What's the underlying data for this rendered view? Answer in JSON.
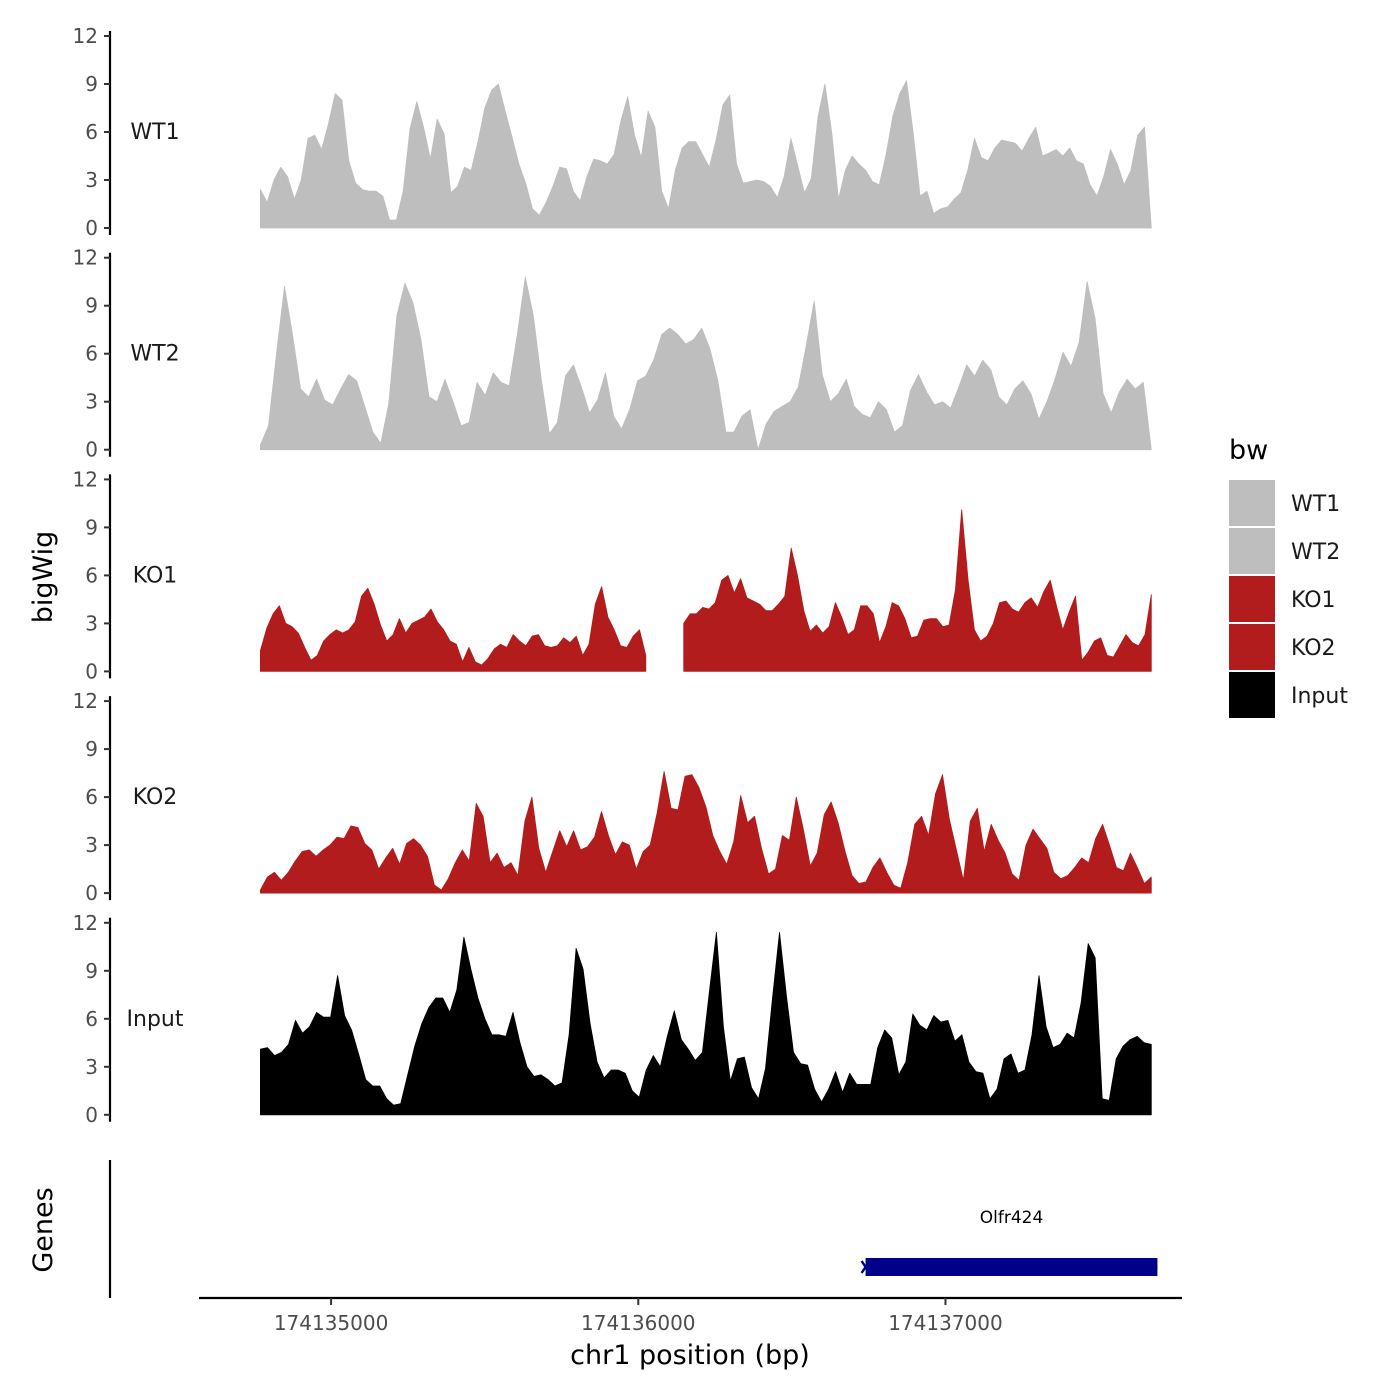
{
  "chart_data": {
    "type": "area",
    "title": "",
    "ylabel": "bigWig",
    "xlabel": "chr1 position (bp)",
    "gene_panel_label": "Genes",
    "xlim": [
      174134570,
      174137770
    ],
    "ylim": [
      0,
      12
    ],
    "y_ticks": [
      "0",
      "3",
      "6",
      "9",
      "12"
    ],
    "x_ticks": [
      {
        "value": 174135000,
        "label": "174135000"
      },
      {
        "value": 174136000,
        "label": "174136000"
      },
      {
        "value": 174137000,
        "label": "174137000"
      }
    ],
    "x_start": 174134770,
    "x_end": 174137670,
    "legend_title": "bw",
    "series": [
      {
        "name": "WT1",
        "color": "#bebebe",
        "values": [
          2.4,
          1.6,
          3.0,
          3.8,
          3.2,
          1.8,
          3.0,
          5.6,
          5.8,
          4.9,
          6.5,
          8.4,
          8.0,
          4.2,
          2.8,
          2.4,
          2.3,
          2.3,
          2.0,
          0.5,
          0.5,
          2.3,
          6.2,
          7.9,
          6.3,
          4.3,
          6.8,
          5.9,
          2.2,
          2.6,
          3.8,
          3.6,
          5.4,
          7.5,
          8.6,
          9.0,
          7.3,
          5.7,
          4.0,
          2.8,
          1.2,
          0.8,
          1.6,
          2.6,
          3.8,
          3.7,
          2.3,
          1.7,
          3.2,
          4.3,
          4.2,
          4.0,
          4.6,
          6.7,
          8.2,
          5.8,
          4.4,
          7.3,
          6.3,
          2.3,
          1.2,
          3.6,
          5.0,
          5.4,
          5.4,
          4.6,
          3.8,
          5.5,
          7.7,
          8.3,
          4.0,
          2.8,
          2.9,
          3.0,
          2.9,
          2.6,
          1.9,
          3.2,
          5.6,
          3.9,
          2.2,
          3.1,
          7.0,
          9.0,
          6.0,
          1.8,
          3.6,
          4.5,
          4.0,
          3.6,
          2.9,
          2.7,
          4.6,
          7.0,
          8.4,
          9.2,
          5.9,
          2.0,
          2.3,
          0.9,
          1.2,
          1.3,
          1.8,
          2.2,
          3.6,
          5.6,
          4.4,
          4.2,
          5.0,
          5.5,
          5.4,
          5.3,
          4.8,
          5.6,
          6.3,
          4.5,
          4.7,
          4.9,
          4.5,
          5.0,
          4.2,
          4.0,
          2.7,
          2.0,
          3.2,
          4.9,
          4.0,
          2.7,
          3.6,
          5.8,
          6.3,
          0.0
        ]
      },
      {
        "name": "WT2",
        "color": "#bebebe",
        "values": [
          0.3,
          1.5,
          6.0,
          10.2,
          7.2,
          3.8,
          3.3,
          4.4,
          3.1,
          2.8,
          3.8,
          4.7,
          4.3,
          2.7,
          1.1,
          0.4,
          2.9,
          8.4,
          10.4,
          9.2,
          6.9,
          3.3,
          3.0,
          4.4,
          3.0,
          1.5,
          1.7,
          4.2,
          3.4,
          4.8,
          4.2,
          4.0,
          7.2,
          10.8,
          8.4,
          4.4,
          1.0,
          1.7,
          4.6,
          5.3,
          3.9,
          2.3,
          3.1,
          4.8,
          2.1,
          1.3,
          2.5,
          4.3,
          4.6,
          5.6,
          7.2,
          7.6,
          7.2,
          6.6,
          6.9,
          7.6,
          6.3,
          4.3,
          1.1,
          1.1,
          2.1,
          2.5,
          0.0,
          1.6,
          2.4,
          2.7,
          3.0,
          3.9,
          6.5,
          9.3,
          4.7,
          3.0,
          3.5,
          4.4,
          2.7,
          2.2,
          2.0,
          3.0,
          2.5,
          1.1,
          1.5,
          3.7,
          4.7,
          3.6,
          2.8,
          3.0,
          2.6,
          3.9,
          5.3,
          4.6,
          5.6,
          5.0,
          3.3,
          2.8,
          3.8,
          4.3,
          3.5,
          1.9,
          3.0,
          4.4,
          6.1,
          5.2,
          6.7,
          10.5,
          8.2,
          3.5,
          2.3,
          3.6,
          4.4,
          3.8,
          4.2,
          0.0
        ]
      },
      {
        "name": "KO1",
        "color": "#b21c1c",
        "values": [
          1.3,
          2.7,
          3.6,
          4.1,
          3.0,
          2.8,
          2.4,
          1.5,
          0.7,
          1.0,
          1.9,
          2.3,
          2.6,
          2.4,
          2.6,
          3.1,
          4.7,
          5.2,
          4.2,
          2.9,
          1.9,
          2.3,
          3.3,
          2.4,
          3.0,
          3.2,
          3.4,
          3.9,
          3.1,
          2.6,
          1.9,
          1.7,
          0.6,
          1.5,
          0.6,
          0.4,
          0.8,
          1.4,
          1.7,
          1.5,
          2.3,
          1.9,
          1.6,
          2.2,
          2.3,
          1.6,
          1.5,
          1.6,
          2.1,
          1.8,
          2.2,
          1.0,
          1.7,
          4.2,
          5.3,
          3.4,
          2.6,
          1.6,
          1.5,
          2.2,
          2.6,
          1.0,
          null,
          null,
          null,
          null,
          null,
          3.0,
          3.6,
          3.6,
          4.0,
          3.9,
          4.3,
          5.7,
          6.0,
          4.9,
          5.8,
          4.6,
          4.4,
          4.2,
          3.8,
          3.8,
          4.2,
          4.7,
          7.7,
          6.0,
          3.8,
          2.5,
          2.9,
          2.4,
          2.8,
          4.3,
          3.4,
          2.3,
          2.6,
          4.1,
          4.1,
          3.6,
          1.8,
          2.8,
          4.3,
          4.1,
          3.3,
          2.1,
          2.2,
          3.2,
          3.3,
          3.3,
          2.8,
          2.9,
          5.1,
          10.1,
          5.7,
          2.6,
          1.9,
          2.2,
          3.0,
          4.3,
          4.4,
          3.9,
          3.7,
          4.3,
          4.6,
          4.0,
          5.0,
          5.7,
          4.1,
          2.6,
          3.7,
          4.7,
          0.7,
          1.2,
          1.9,
          2.1,
          1.0,
          0.9,
          1.6,
          2.3,
          1.8,
          1.6,
          2.3,
          4.8
        ]
      },
      {
        "name": "KO2",
        "color": "#b21c1c",
        "values": [
          0.2,
          1.0,
          1.3,
          0.8,
          1.3,
          2.0,
          2.6,
          2.7,
          2.3,
          2.7,
          3.0,
          3.5,
          3.4,
          4.2,
          4.1,
          3.1,
          2.7,
          1.5,
          2.2,
          2.8,
          1.8,
          3.1,
          3.4,
          3.0,
          2.3,
          0.5,
          0.2,
          0.9,
          1.9,
          2.7,
          2.0,
          5.6,
          4.8,
          1.9,
          2.5,
          1.6,
          1.9,
          1.1,
          4.5,
          6.0,
          2.8,
          1.3,
          2.6,
          3.9,
          2.9,
          3.9,
          2.7,
          2.9,
          3.5,
          5.1,
          3.6,
          2.4,
          3.2,
          3.0,
          1.5,
          2.6,
          3.0,
          5.0,
          7.6,
          5.3,
          5.2,
          7.3,
          7.4,
          6.6,
          5.4,
          3.6,
          2.6,
          1.8,
          3.2,
          6.1,
          4.4,
          4.8,
          2.8,
          1.2,
          1.5,
          3.6,
          3.3,
          6.0,
          4.0,
          1.7,
          2.5,
          4.9,
          5.7,
          4.4,
          2.6,
          1.1,
          0.6,
          0.7,
          1.6,
          2.2,
          1.3,
          0.5,
          0.3,
          1.9,
          4.3,
          4.8,
          3.6,
          6.2,
          7.4,
          4.6,
          2.7,
          0.8,
          4.5,
          5.3,
          2.6,
          4.3,
          3.3,
          2.5,
          1.2,
          0.8,
          3.0,
          4.0,
          3.4,
          2.8,
          1.3,
          0.9,
          1.1,
          1.6,
          2.2,
          1.9,
          3.4,
          4.3,
          3.0,
          1.6,
          1.4,
          2.5,
          1.6,
          0.6,
          1.0
        ]
      },
      {
        "name": "Input",
        "color": "#000000",
        "values": [
          4.1,
          4.2,
          3.7,
          3.9,
          4.4,
          5.9,
          5.1,
          5.5,
          6.4,
          6.1,
          6.1,
          8.7,
          6.2,
          5.3,
          3.8,
          2.2,
          1.8,
          1.8,
          1.0,
          0.6,
          0.7,
          2.5,
          4.3,
          5.7,
          6.7,
          7.3,
          7.3,
          6.4,
          7.8,
          11.1,
          9.1,
          7.3,
          6.0,
          5.0,
          5.0,
          4.9,
          6.4,
          4.5,
          3.0,
          2.4,
          2.5,
          2.2,
          1.8,
          2.0,
          5.0,
          10.4,
          9.1,
          5.7,
          3.3,
          2.3,
          2.8,
          2.8,
          2.6,
          1.5,
          1.1,
          2.8,
          3.7,
          3.0,
          4.9,
          6.5,
          4.7,
          4.1,
          3.4,
          3.9,
          7.7,
          11.4,
          5.5,
          2.1,
          3.5,
          3.6,
          1.7,
          1.0,
          2.9,
          7.3,
          11.4,
          7.4,
          3.9,
          3.2,
          3.1,
          1.6,
          0.8,
          1.6,
          2.7,
          1.4,
          2.6,
          1.9,
          1.9,
          1.9,
          4.2,
          5.3,
          4.8,
          2.5,
          3.3,
          6.3,
          5.6,
          5.3,
          6.2,
          5.8,
          5.9,
          4.6,
          5.0,
          3.3,
          2.7,
          2.6,
          1.0,
          1.6,
          3.5,
          3.8,
          2.6,
          2.8,
          5.0,
          8.7,
          5.5,
          4.2,
          4.4,
          5.1,
          4.8,
          7.0,
          10.7,
          9.8,
          1.0,
          0.9,
          3.5,
          4.3,
          4.7,
          4.9,
          4.5,
          4.4
        ]
      }
    ],
    "genes": [
      {
        "name": "Olfr424",
        "start": 174136740,
        "end": 174137690,
        "strand": "-",
        "color": "#00008b"
      }
    ]
  }
}
